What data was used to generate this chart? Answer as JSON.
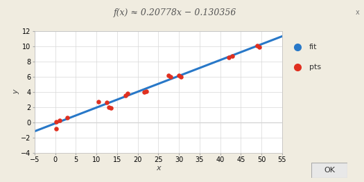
{
  "title": "f(x) ≈ 0.20778x − 0.130356",
  "slope": 0.20778,
  "intercept": -0.130356,
  "pts_x": [
    0.3,
    0.3,
    1.0,
    3.0,
    10.5,
    12.5,
    13.0,
    13.5,
    17.0,
    17.5,
    21.5,
    22.0,
    27.5,
    28.0,
    30.0,
    30.5,
    42.0,
    43.0,
    49.0,
    49.5
  ],
  "pts_y": [
    0.1,
    -0.8,
    0.3,
    0.6,
    2.7,
    2.6,
    2.0,
    1.9,
    3.5,
    3.8,
    4.0,
    4.1,
    6.2,
    6.0,
    6.2,
    6.0,
    8.5,
    8.7,
    10.1,
    9.9
  ],
  "xlim": [
    -5,
    55
  ],
  "ylim": [
    -4,
    12
  ],
  "xticks": [
    -5,
    0,
    5,
    10,
    15,
    20,
    25,
    30,
    35,
    40,
    45,
    50,
    55
  ],
  "yticks": [
    -4,
    -2,
    0,
    2,
    4,
    6,
    8,
    10,
    12
  ],
  "xlabel": "x",
  "ylabel": "y",
  "line_color": "#2878c8",
  "pts_color": "#e03020",
  "bg_color": "#f0ece0",
  "plot_bg_color": "#ffffff",
  "title_bar_color": "#d0cec8",
  "grid_color": "#d8d8d8",
  "title_fontsize": 9,
  "tick_fontsize": 7,
  "axis_label_fontsize": 8,
  "legend_fit_label": "fit",
  "legend_pts_label": "pts",
  "ok_label": "OK"
}
